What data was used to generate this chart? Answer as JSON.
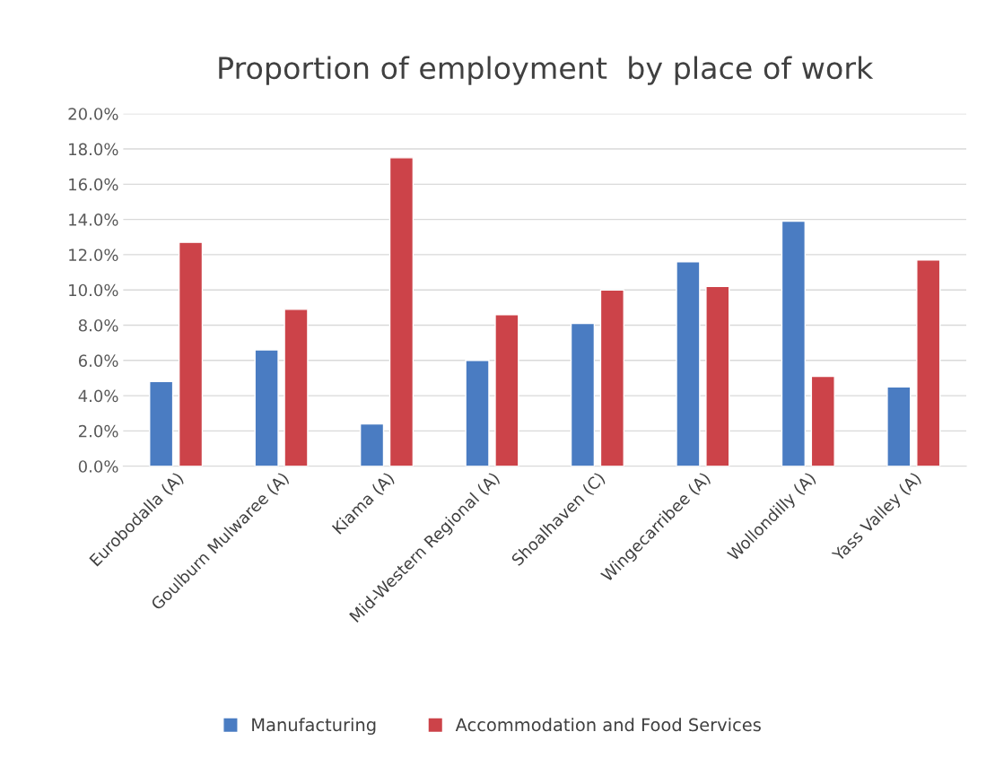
{
  "chart_data": {
    "type": "bar",
    "title": "Proportion of employment  by place of work",
    "categories": [
      "Eurobodalla (A)",
      "Goulburn Mulwaree (A)",
      "Kiama (A)",
      "Mid-Western Regional (A)",
      "Shoalhaven (C)",
      "Wingecarribee (A)",
      "Wollondilly (A)",
      "Yass Valley (A)"
    ],
    "series": [
      {
        "name": "Manufacturing",
        "color": "#4a7cc2",
        "values": [
          4.8,
          6.6,
          2.4,
          6.0,
          8.1,
          11.6,
          13.9,
          4.5
        ]
      },
      {
        "name": "Accommodation and Food Services",
        "color": "#cc4349",
        "values": [
          12.7,
          8.9,
          17.5,
          8.6,
          10.0,
          10.2,
          5.1,
          11.7
        ]
      }
    ],
    "ylim": [
      0,
      20
    ],
    "yticks": [
      {
        "value": 0,
        "label": "0.0%"
      },
      {
        "value": 2,
        "label": "2.0%"
      },
      {
        "value": 4,
        "label": "4.0%"
      },
      {
        "value": 6,
        "label": "6.0%"
      },
      {
        "value": 8,
        "label": "8.0%"
      },
      {
        "value": 10,
        "label": "10.0%"
      },
      {
        "value": 12,
        "label": "12.0%"
      },
      {
        "value": 14,
        "label": "14.0%"
      },
      {
        "value": 16,
        "label": "16.0%"
      },
      {
        "value": 18,
        "label": "18.0%"
      },
      {
        "value": 20,
        "label": "20.0%"
      }
    ],
    "grid": "y",
    "legend": "bottom"
  }
}
